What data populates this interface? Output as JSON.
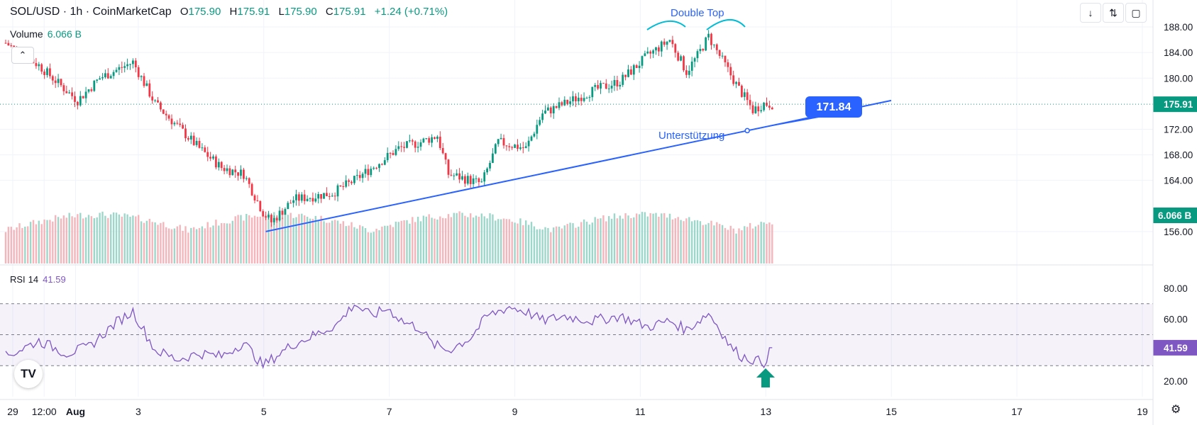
{
  "header": {
    "symbol": "SOL/USD · 1h · CoinMarketCap",
    "open_label": "O",
    "open": "175.90",
    "high_label": "H",
    "high": "175.91",
    "low_label": "L",
    "low": "175.90",
    "close_label": "C",
    "close": "175.91",
    "change": "+1.24 (+0.71%)"
  },
  "volume_legend": {
    "label": "Volume",
    "value": "6.066 B"
  },
  "rsi_legend": {
    "label": "RSI",
    "period": "14",
    "value": "41.59"
  },
  "icons": {
    "download": "download-icon",
    "collapse": "collapse-arrows-icon",
    "fullscreen": "fullscreen-icon",
    "hide": "chevron-up-icon",
    "logo": "tradingview-logo-icon",
    "settings": "gear-icon",
    "signal": "up-arrow-icon"
  },
  "colors": {
    "up": "#089981",
    "down": "#f23645",
    "trendline": "#2962ff",
    "rsi": "#7e57c2",
    "annotation": "#00bcd4",
    "label_box": "#2962ff"
  },
  "annotations": {
    "double_top": "Double Top",
    "support": "Unterstützung",
    "trendline_value": "171.84"
  },
  "chart_data": [
    {
      "type": "candlestick",
      "title": "SOL/USD · 1h · CoinMarketCap",
      "x_ticks": [
        "29",
        "12:00",
        "Aug",
        "3",
        "5",
        "7",
        "9",
        "11",
        "13",
        "15",
        "17",
        "19"
      ],
      "y_ticks": [
        "188.00",
        "184.00",
        "180.00",
        "172.00",
        "168.00",
        "164.00",
        "156.00"
      ],
      "ylim": [
        151,
        190
      ],
      "last_price": 175.91,
      "last_price_label": "175.91",
      "trendline": {
        "from": {
          "x": "Aug 2 22:00",
          "y": 156.0
        },
        "to": {
          "x": "Aug 15 08:00",
          "y": 176.5
        },
        "value_label": "171.84"
      },
      "key_points": [
        {
          "t": 0,
          "price": 185.5
        },
        {
          "t": 12,
          "price": 182.0
        },
        {
          "t": 22,
          "price": 178.0
        },
        {
          "t": 26,
          "price": 176.5
        },
        {
          "t": 34,
          "price": 180.0
        },
        {
          "t": 46,
          "price": 182.5
        },
        {
          "t": 54,
          "price": 176.0
        },
        {
          "t": 62,
          "price": 172.5
        },
        {
          "t": 70,
          "price": 169.0
        },
        {
          "t": 78,
          "price": 166.0
        },
        {
          "t": 86,
          "price": 165.0
        },
        {
          "t": 93,
          "price": 159.0
        },
        {
          "t": 96,
          "price": 157.5
        },
        {
          "t": 104,
          "price": 161.0
        },
        {
          "t": 118,
          "price": 162.0
        },
        {
          "t": 126,
          "price": 164.0
        },
        {
          "t": 134,
          "price": 166.5
        },
        {
          "t": 142,
          "price": 169.0
        },
        {
          "t": 150,
          "price": 170.0
        },
        {
          "t": 156,
          "price": 171.0
        },
        {
          "t": 160,
          "price": 165.0
        },
        {
          "t": 172,
          "price": 163.5
        },
        {
          "t": 178,
          "price": 170.0
        },
        {
          "t": 188,
          "price": 169.0
        },
        {
          "t": 194,
          "price": 174.5
        },
        {
          "t": 202,
          "price": 176.0
        },
        {
          "t": 212,
          "price": 178.0
        },
        {
          "t": 222,
          "price": 179.5
        },
        {
          "t": 232,
          "price": 183.5
        },
        {
          "t": 240,
          "price": 186.0
        },
        {
          "t": 246,
          "price": 181.0
        },
        {
          "t": 250,
          "price": 183.5
        },
        {
          "t": 254,
          "price": 186.5
        },
        {
          "t": 258,
          "price": 183.5
        },
        {
          "t": 264,
          "price": 179.0
        },
        {
          "t": 270,
          "price": 175.0
        },
        {
          "t": 274,
          "price": 176.0
        },
        {
          "t": 277,
          "price": 175.9
        }
      ],
      "volume": {
        "label": "Volume",
        "last": "6.066 B"
      }
    },
    {
      "type": "line",
      "name": "RSI 14",
      "ylim": [
        10,
        90
      ],
      "y_ticks": [
        "80.00",
        "60.00",
        "20.00"
      ],
      "bands": [
        30,
        50,
        70
      ],
      "last_value": 41.59,
      "last_label": "41.59",
      "key_points": [
        {
          "t": 0,
          "v": 36
        },
        {
          "t": 12,
          "v": 46
        },
        {
          "t": 22,
          "v": 38
        },
        {
          "t": 30,
          "v": 42
        },
        {
          "t": 40,
          "v": 58
        },
        {
          "t": 46,
          "v": 65
        },
        {
          "t": 54,
          "v": 40
        },
        {
          "t": 62,
          "v": 34
        },
        {
          "t": 70,
          "v": 38
        },
        {
          "t": 78,
          "v": 36
        },
        {
          "t": 86,
          "v": 45
        },
        {
          "t": 93,
          "v": 30
        },
        {
          "t": 96,
          "v": 34
        },
        {
          "t": 104,
          "v": 44
        },
        {
          "t": 112,
          "v": 50
        },
        {
          "t": 120,
          "v": 57
        },
        {
          "t": 126,
          "v": 70
        },
        {
          "t": 132,
          "v": 62
        },
        {
          "t": 138,
          "v": 67
        },
        {
          "t": 144,
          "v": 58
        },
        {
          "t": 150,
          "v": 54
        },
        {
          "t": 154,
          "v": 44
        },
        {
          "t": 160,
          "v": 40
        },
        {
          "t": 168,
          "v": 48
        },
        {
          "t": 174,
          "v": 62
        },
        {
          "t": 182,
          "v": 68
        },
        {
          "t": 188,
          "v": 65
        },
        {
          "t": 194,
          "v": 59
        },
        {
          "t": 202,
          "v": 62
        },
        {
          "t": 212,
          "v": 59
        },
        {
          "t": 222,
          "v": 62
        },
        {
          "t": 232,
          "v": 55
        },
        {
          "t": 240,
          "v": 59
        },
        {
          "t": 246,
          "v": 53
        },
        {
          "t": 254,
          "v": 64
        },
        {
          "t": 258,
          "v": 54
        },
        {
          "t": 262,
          "v": 42
        },
        {
          "t": 266,
          "v": 36
        },
        {
          "t": 270,
          "v": 34
        },
        {
          "t": 274,
          "v": 32
        },
        {
          "t": 277,
          "v": 41.59
        }
      ]
    }
  ]
}
